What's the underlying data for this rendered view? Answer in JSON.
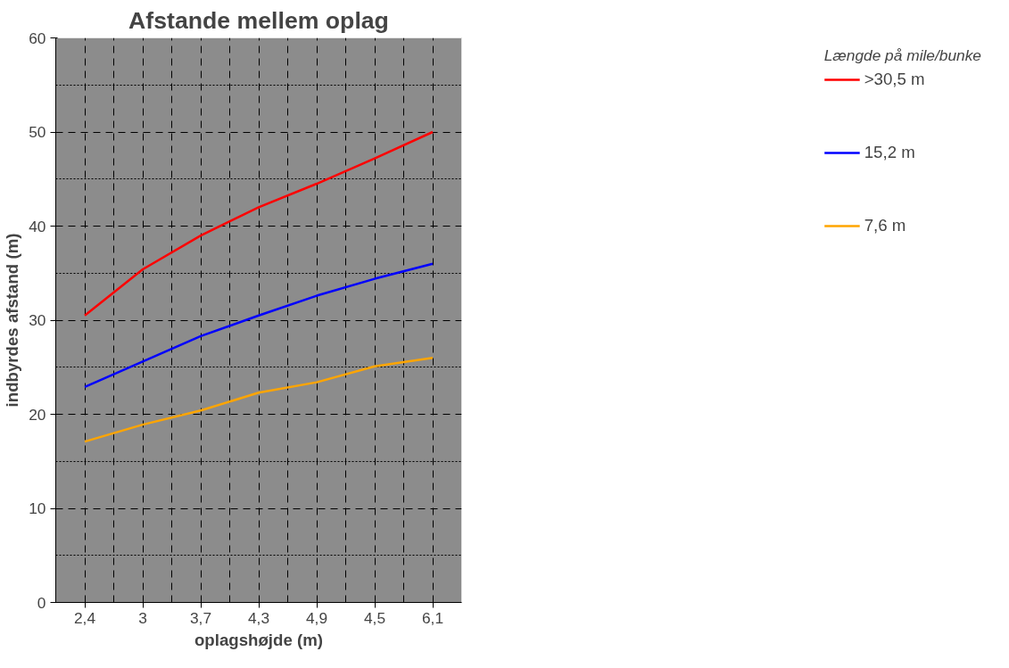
{
  "chart_data": {
    "type": "line",
    "title": "Afstande mellem oplag",
    "xlabel": "oplagshøjde (m)",
    "ylabel": "indbyrdes afstand (m)",
    "legend_title": "Længde på mile/bunke",
    "categories": [
      "2,4",
      "3",
      "3,7",
      "4,3",
      "4,9",
      "4,5",
      "6,1"
    ],
    "series": [
      {
        "name": ">30,5 m",
        "color": "#ff0000",
        "values": [
          30.5,
          35.4,
          39,
          42,
          44.5,
          47.2,
          50
        ]
      },
      {
        "name": "15,2 m",
        "color": "#0000ff",
        "values": [
          22.9,
          25.6,
          28.3,
          30.5,
          32.6,
          34.4,
          36
        ]
      },
      {
        "name": "7,6 m",
        "color": "#ffa500",
        "values": [
          17.1,
          18.9,
          20.4,
          22.3,
          23.4,
          25.1,
          26
        ]
      }
    ],
    "ylim": [
      0,
      60
    ],
    "yticks": [
      0,
      10,
      20,
      30,
      40,
      50,
      60
    ],
    "grid": true,
    "legend": "right",
    "marker": "none",
    "line_style": "solid"
  }
}
